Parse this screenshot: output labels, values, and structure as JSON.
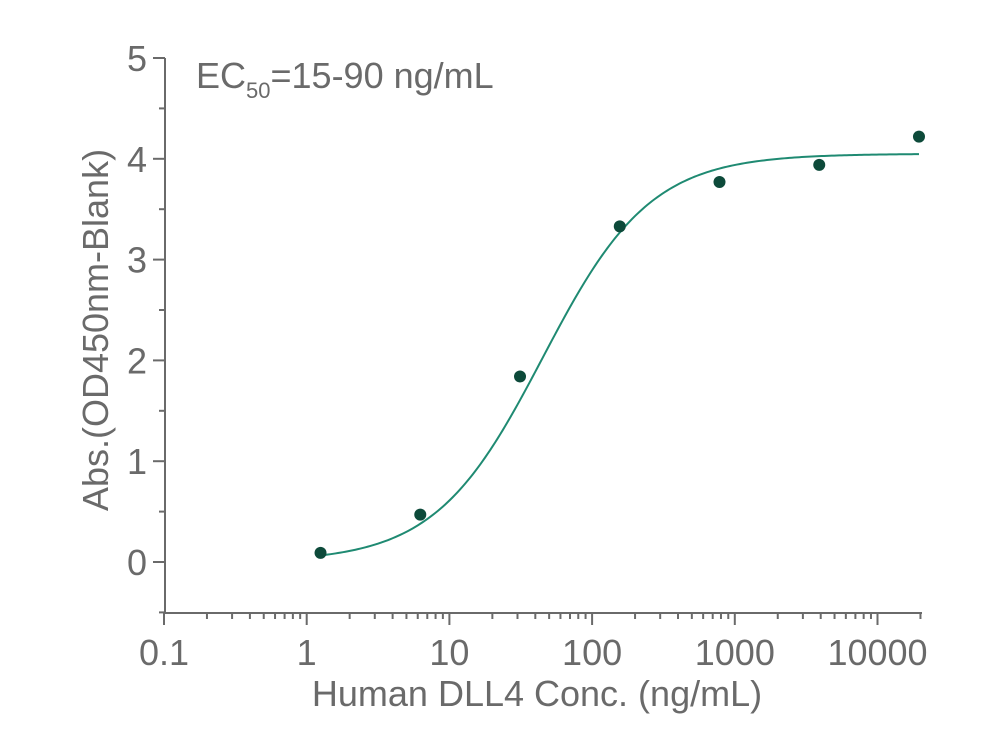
{
  "chart_data": {
    "type": "scatter",
    "xlabel": "Human DLL4 Conc. (ng/mL)",
    "ylabel": "Abs.(OD450nm-Blank)",
    "x_scale": "log",
    "xlim": [
      0.1,
      20000
    ],
    "ylim": [
      -0.5,
      5
    ],
    "x_ticks": [
      0.1,
      1,
      10,
      100,
      1000,
      10000
    ],
    "x_tick_labels": [
      "0.1",
      "1",
      "10",
      "100",
      "1000",
      "10000"
    ],
    "y_ticks": [
      0,
      1,
      2,
      3,
      4,
      5
    ],
    "y_tick_labels": [
      "0",
      "1",
      "2",
      "3",
      "4",
      "5"
    ],
    "grid": false,
    "annotation": {
      "prefix": "EC",
      "subscript": "50",
      "suffix": "=15-90 ng/mL"
    },
    "series": [
      {
        "x": [
          1.25,
          6.25,
          31.25,
          156.25,
          781.25,
          3906.25,
          19531.25
        ],
        "y": [
          0.09,
          0.47,
          1.84,
          3.33,
          3.77,
          3.94,
          4.22
        ],
        "color": "#0d4a3a"
      }
    ],
    "fit_curve": {
      "model": "4PL",
      "bottom": 0.0,
      "top": 4.05,
      "ec50": 45,
      "hill": 1.15,
      "color": "#1f8a72"
    }
  }
}
